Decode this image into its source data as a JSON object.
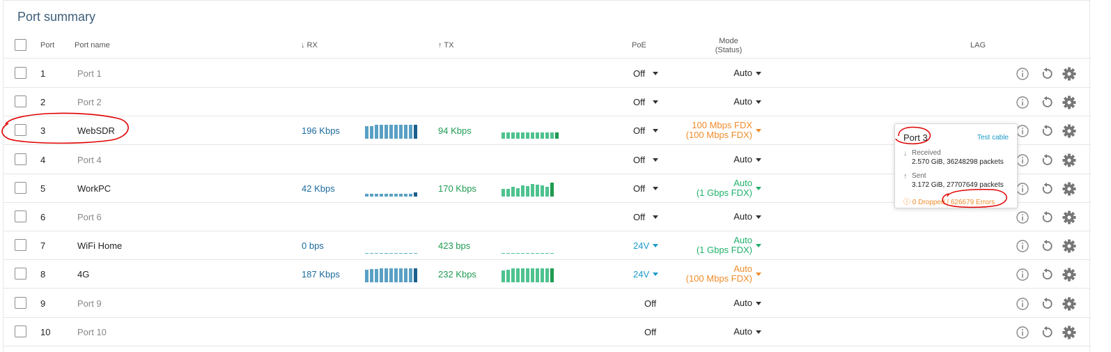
{
  "page": {
    "title": "Port summary"
  },
  "header": {
    "port": "Port",
    "port_name": "Port name",
    "rx": "↓ RX",
    "tx": "↑ TX",
    "poe": "PoE",
    "mode_line1": "Mode",
    "mode_line2": "(Status)",
    "lag": "LAG"
  },
  "rows": [
    {
      "num": "1",
      "name": "Port 1",
      "rx": "",
      "tx": "",
      "poe": "Off",
      "mode1": "Auto",
      "mode2": ""
    },
    {
      "num": "2",
      "name": "Port 2",
      "rx": "",
      "tx": "",
      "poe": "Off",
      "mode1": "Auto",
      "mode2": ""
    },
    {
      "num": "3",
      "name": "WebSDR",
      "rx": "196 Kbps",
      "tx": "94 Kbps",
      "poe": "Off",
      "mode1": "100 Mbps FDX",
      "mode2": "(100 Mbps FDX)"
    },
    {
      "num": "4",
      "name": "Port 4",
      "rx": "",
      "tx": "",
      "poe": "Off",
      "mode1": "Auto",
      "mode2": ""
    },
    {
      "num": "5",
      "name": "WorkPC",
      "rx": "42 Kbps",
      "tx": "170 Kbps",
      "poe": "Off",
      "mode1": "Auto",
      "mode2": "(1 Gbps FDX)"
    },
    {
      "num": "6",
      "name": "Port 6",
      "rx": "",
      "tx": "",
      "poe": "Off",
      "mode1": "Auto",
      "mode2": ""
    },
    {
      "num": "7",
      "name": "WiFi Home",
      "rx": "0 bps",
      "tx": "423 bps",
      "poe": "24V",
      "mode1": "Auto",
      "mode2": "(1 Gbps FDX)"
    },
    {
      "num": "8",
      "name": "4G",
      "rx": "187 Kbps",
      "tx": "232 Kbps",
      "poe": "24V",
      "mode1": "Auto",
      "mode2": "(100 Mbps FDX)"
    },
    {
      "num": "9",
      "name": "Port 9",
      "rx": "",
      "tx": "",
      "poe": "Off",
      "mode1": "Auto",
      "mode2": ""
    },
    {
      "num": "10",
      "name": "Port 10",
      "rx": "",
      "tx": "",
      "poe": "Off",
      "mode1": "Auto",
      "mode2": ""
    }
  ],
  "tooltip": {
    "title": "Port 3",
    "test_cable": "Test cable",
    "received_label": "Received",
    "received_value": "2.570 GiB, 36248298 packets",
    "sent_label": "Sent",
    "sent_value": "3.172 GiB, 27707649 packets",
    "dropped": "0 Dropped",
    "separator": " / ",
    "errors": "626679 Errors"
  },
  "icons": {
    "info": "info-icon",
    "reset": "restart-icon",
    "settings": "gear-icon"
  },
  "colors": {
    "rx": "#1b6a9c",
    "tx": "#1f9a52",
    "warning": "#f08c2a",
    "ok": "#1fb06a",
    "poe": "#1a9ac8",
    "title": "#3d5d7a"
  }
}
